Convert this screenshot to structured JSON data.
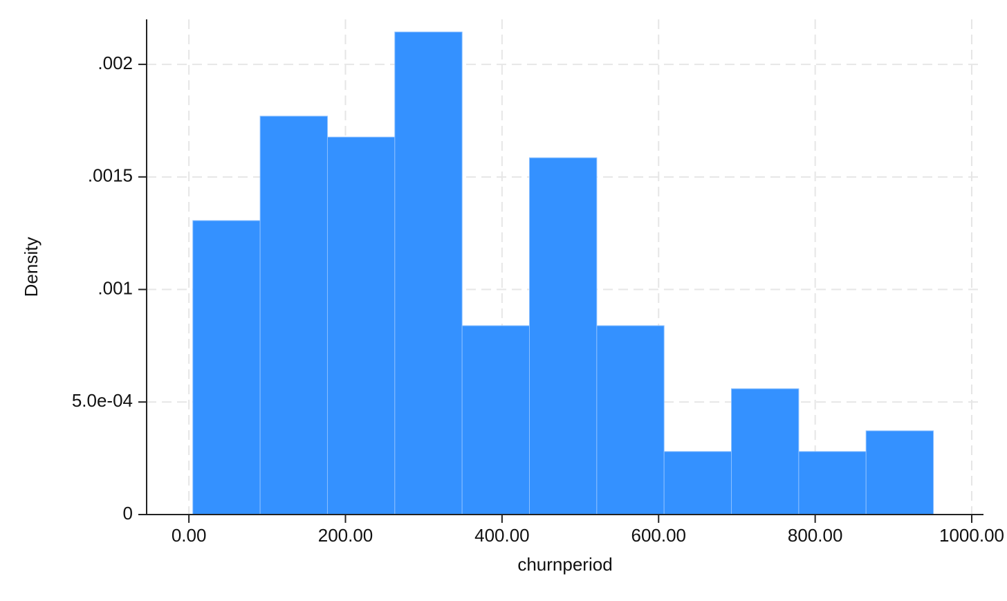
{
  "chart_data": {
    "type": "histogram",
    "x_label": "churnperiod",
    "y_label": "Density",
    "bins": [
      5,
      91,
      177,
      263,
      349,
      435,
      521,
      607,
      693,
      779,
      865,
      951
    ],
    "values": [
      0.001306,
      0.00177,
      0.001677,
      0.002144,
      0.000839,
      0.001585,
      0.000839,
      0.00028,
      0.000559,
      0.00028,
      0.000372
    ],
    "color": "#3491ff",
    "xlim": [
      -54,
      1015
    ],
    "ylim": [
      0,
      0.0022
    ],
    "xticks": [
      {
        "value": 0,
        "label": "0.00"
      },
      {
        "value": 200,
        "label": "200.00"
      },
      {
        "value": 400,
        "label": "400.00"
      },
      {
        "value": 600,
        "label": "600.00"
      },
      {
        "value": 800,
        "label": "800.00"
      },
      {
        "value": 1000,
        "label": "1000.00"
      }
    ],
    "yticks": [
      0,
      {
        "value": 0.0005,
        "label": "5.0e-04"
      },
      {
        "value": 0.001,
        "label": ".001"
      },
      {
        "value": 0.0015,
        "label": ".0015"
      },
      {
        "value": 0.002,
        "label": ".002"
      }
    ],
    "grid": true
  }
}
